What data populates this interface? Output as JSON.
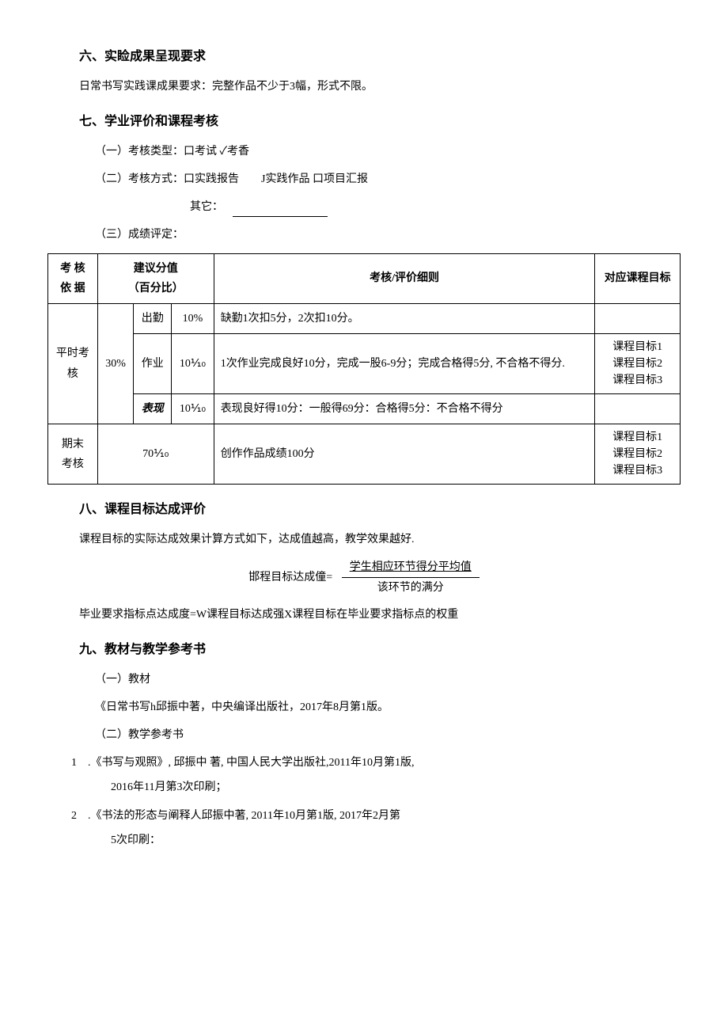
{
  "section6": {
    "title": "六、实睑成果呈现要求",
    "body": "日常书写实践课成果要求：完整作品不少于3幅，形式不限。"
  },
  "section7": {
    "title": "七、学业评价和课程考核",
    "line1": "（一）考核类型：口考试 ✓考香",
    "line2": "（二）考核方式：口实践报告  J实践作品 口项目汇报",
    "other_label": "其它：",
    "line3": "（三）成绩评定：",
    "table": {
      "headers": {
        "c1": "考 核\n依 据",
        "c2": "建议分值\n（百分比）",
        "c3": "考核/评价细则",
        "c4": "对应课程目标"
      },
      "rows": [
        {
          "group": "平时考\n核",
          "group_pct": "30%",
          "sub": "出勤",
          "pct": "10%",
          "rule": "缺勤1次扣5分，2次扣10分。",
          "target": ""
        },
        {
          "sub": "作业",
          "pct": "10⅒",
          "rule": "1次作业完成良好10分，完成一股6-9分；完成合格得5分, 不合格不得分.",
          "target": "课程目标1\n课程目标2\n课程目标3"
        },
        {
          "sub_italic": "表现",
          "pct": "10⅒",
          "rule": "表现良好得10分：一般得69分：合格得5分：不合格不得分",
          "target": ""
        },
        {
          "group": "期末\n考核",
          "group_pct": "70⅒",
          "rule": "创作作品成绩100分",
          "target": "课程目标1\n课程目标2\n课程目标3"
        }
      ]
    }
  },
  "section8": {
    "title": "八、课程目标达成评价",
    "intro": "课程目标的实际达成效果计算方式如下，达成值越高，教学效果越好.",
    "formula_label": "邯程目标达成僮=",
    "formula_num": "学生相应环节得分平均值",
    "formula_den": "该环节的满分",
    "line2": "毕业要求指标点达成度=W课程目标达成强X课程目标在毕业要求指标点的权重"
  },
  "section9": {
    "title": "九、教材与教学参考书",
    "sub1": "（一）教材",
    "book1": "《日常书写h邱振中著，中央编译出版社，2017年8月第1版。",
    "sub2": "（二）教学参考书",
    "ref1_a": "1 .《书写与观照》, 邱振中 著, 中国人民大学出版社,2011年10月第1版,",
    "ref1_b": "2016年11月第3次印刷；",
    "ref2_a": "2 .《书法的形态与阐释人邱振中著, 2011年10月第1版, 2017年2月第",
    "ref2_b": "5次印刷："
  }
}
